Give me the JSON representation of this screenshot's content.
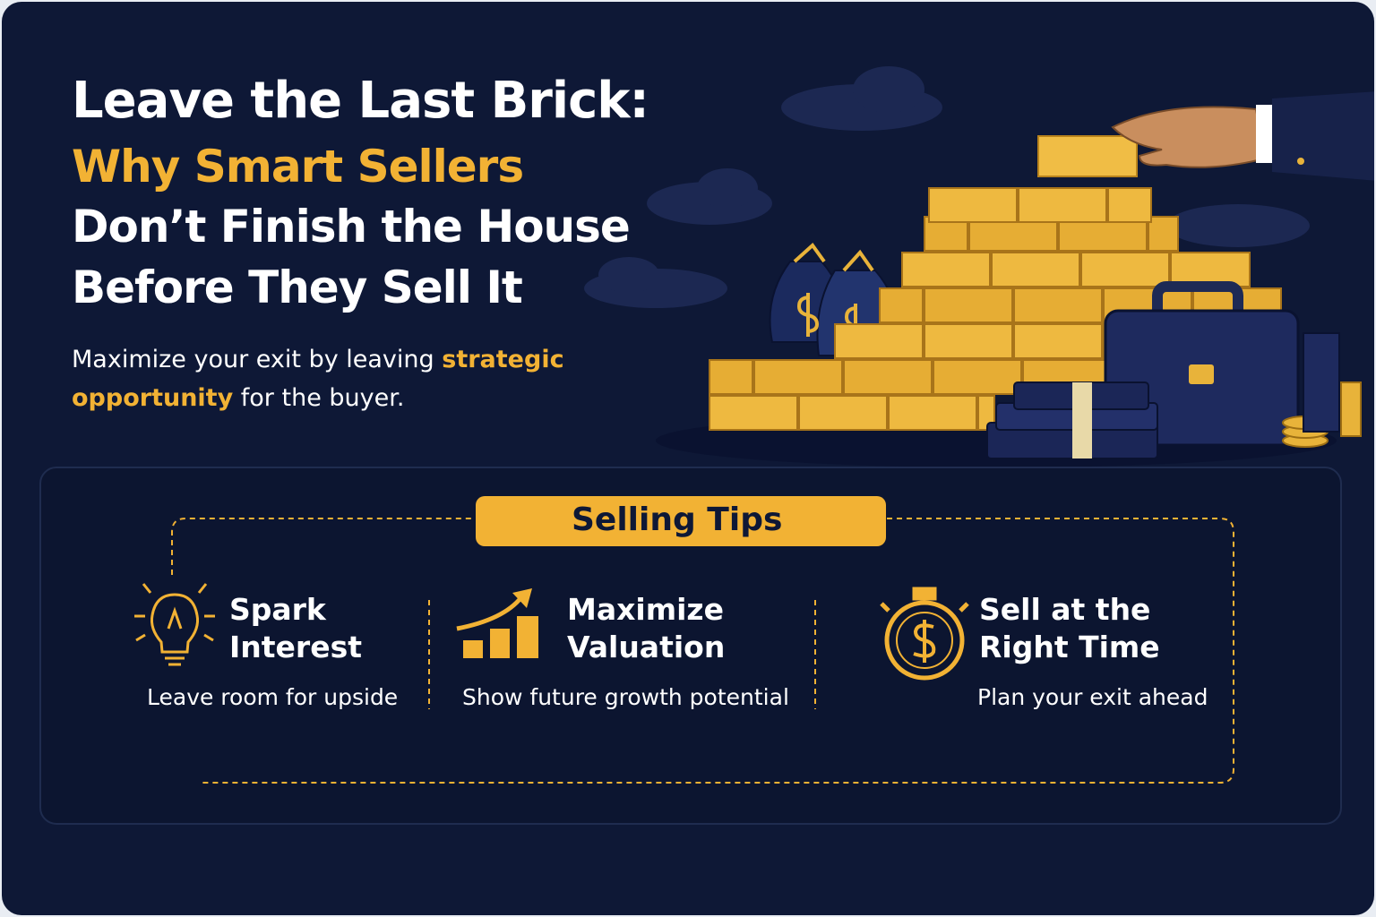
{
  "header": {
    "title_lines": [
      "Leave the Last Brick:",
      "Why Smart Sellers",
      "Don’t Finish the House",
      "Before They Sell It"
    ],
    "subtitle": {
      "parts": [
        "Maximize your exit by leaving",
        "strategic opportunity",
        "for the buyer."
      ]
    }
  },
  "tips": {
    "label": "Selling Tips",
    "items": [
      {
        "title_lines": [
          "Spark",
          "Interest"
        ],
        "description": "Leave room for upside"
      },
      {
        "title_lines": [
          "Maximize",
          "Valuation"
        ],
        "description": "Show future growth potential"
      },
      {
        "title_lines": [
          "Sell at the",
          "Right Time"
        ],
        "description": "Plan your exit ahead"
      }
    ]
  }
}
